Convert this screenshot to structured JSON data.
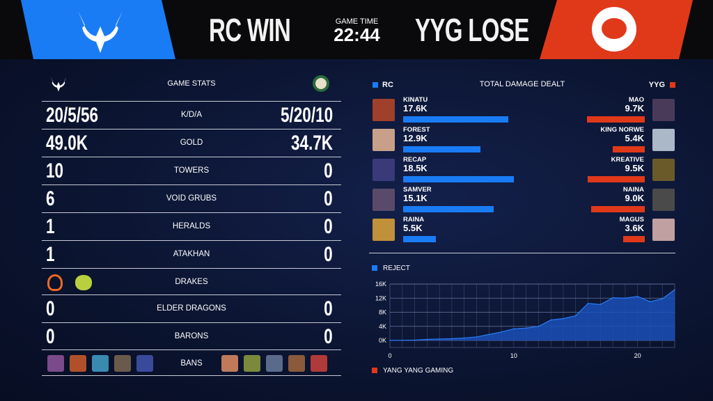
{
  "header": {
    "left_result": "RC WIN",
    "right_result": "YYG LOSE",
    "game_time_label": "GAME TIME",
    "game_time": "22:44",
    "left_color": "#1a7cf5",
    "right_color": "#e0391a"
  },
  "stats": {
    "title": "GAME STATS",
    "rows": [
      {
        "label": "K/D/A",
        "left": "20/5/56",
        "right": "5/20/10"
      },
      {
        "label": "GOLD",
        "left": "49.0K",
        "right": "34.7K"
      },
      {
        "label": "TOWERS",
        "left": "10",
        "right": "0"
      },
      {
        "label": "VOID GRUBS",
        "left": "6",
        "right": "0"
      },
      {
        "label": "HERALDS",
        "left": "1",
        "right": "0"
      },
      {
        "label": "ATAKHAN",
        "left": "1",
        "right": "0"
      },
      {
        "label": "DRAKES",
        "left_icons": [
          "infernal-drake-icon",
          "chemtech-drake-icon"
        ],
        "right": ""
      },
      {
        "label": "ELDER DRAGONS",
        "left": "0",
        "right": "0"
      },
      {
        "label": "BARONS",
        "left": "0",
        "right": "0"
      },
      {
        "label": "BANS"
      }
    ],
    "bans_left": [
      "#7a4a8a",
      "#b0502a",
      "#3a8ab0",
      "#6a5a4a",
      "#3a4a9a"
    ],
    "bans_right": [
      "#c07a5a",
      "#7a8a3a",
      "#5a6a8a",
      "#8a5a3a",
      "#b03a3a"
    ]
  },
  "damage": {
    "title": "TOTAL DAMAGE DEALT",
    "left_team": "RC",
    "right_team": "YYG",
    "left": [
      {
        "name": "KINATU",
        "value": "17.6K",
        "k": 17.6,
        "color": "#a0402a"
      },
      {
        "name": "FOREST",
        "value": "12.9K",
        "k": 12.9,
        "color": "#c8a08a"
      },
      {
        "name": "RECAP",
        "value": "18.5K",
        "k": 18.5,
        "color": "#3a3a7a"
      },
      {
        "name": "SAMVER",
        "value": "15.1K",
        "k": 15.1,
        "color": "#5a4a6a"
      },
      {
        "name": "RAINA",
        "value": "5.5K",
        "k": 5.5,
        "color": "#c0903a"
      }
    ],
    "right": [
      {
        "name": "MAO",
        "value": "9.7K",
        "k": 9.7,
        "color": "#4a3a5a"
      },
      {
        "name": "KING NORWE",
        "value": "5.4K",
        "k": 5.4,
        "color": "#aab8c8"
      },
      {
        "name": "KREATIVE",
        "value": "9.5K",
        "k": 9.5,
        "color": "#6a5a2a"
      },
      {
        "name": "NAINA",
        "value": "9.0K",
        "k": 9.0,
        "color": "#4a4a4a"
      },
      {
        "name": "MAGUS",
        "value": "3.6K",
        "k": 3.6,
        "color": "#c0a0a0"
      }
    ]
  },
  "chart_data": {
    "type": "area",
    "series": [
      {
        "name": "REJECT",
        "color": "#1a7cf5",
        "x": [
          0,
          1,
          2,
          3,
          4,
          5,
          6,
          7,
          8,
          9,
          10,
          11,
          12,
          13,
          14,
          15,
          16,
          17,
          18,
          19,
          20,
          21,
          22,
          23
        ],
        "values": [
          0,
          0.05,
          0.1,
          0.3,
          0.4,
          0.5,
          0.7,
          1.0,
          1.7,
          2.4,
          3.3,
          3.5,
          4.0,
          5.8,
          6.2,
          7.0,
          10.5,
          10.2,
          12.1,
          12.0,
          12.5,
          11.0,
          11.8,
          14.4
        ]
      }
    ],
    "legend": [
      {
        "name": "REJECT",
        "color": "#1a7cf5"
      },
      {
        "name": "YANG YANG GAMING",
        "color": "#e0391a"
      }
    ],
    "yticks": [
      "0K",
      "4K",
      "8K",
      "12K",
      "16K"
    ],
    "ylim": [
      -2,
      16
    ],
    "xticks": [
      "0",
      "10",
      "20"
    ],
    "xlim": [
      0,
      23
    ],
    "grid": true
  }
}
